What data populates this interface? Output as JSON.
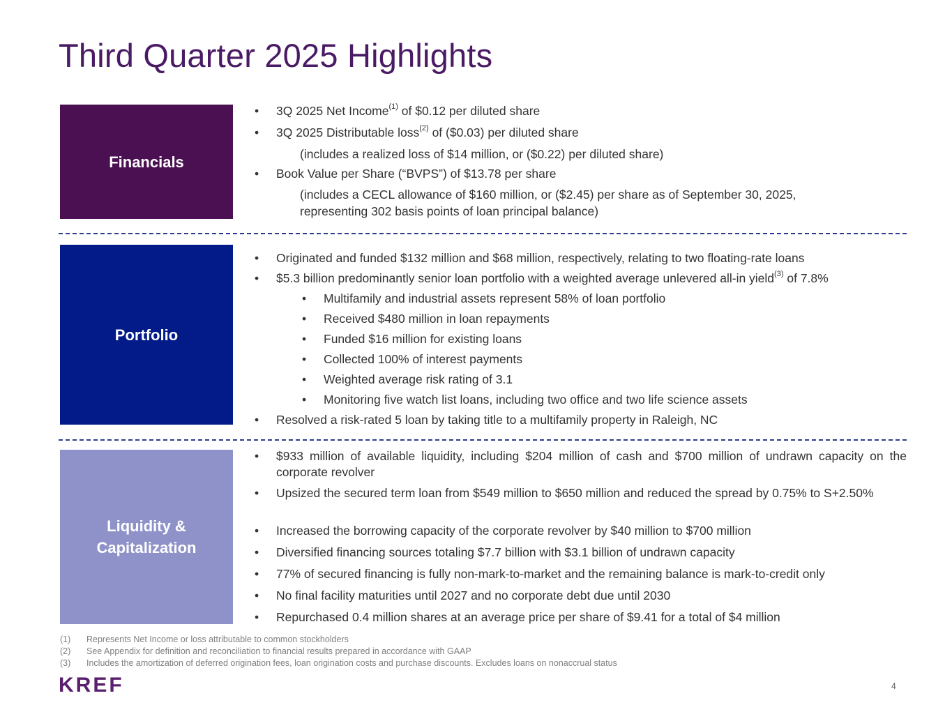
{
  "title": "Third Quarter 2025 Highlights",
  "sections": {
    "financials": {
      "label": "Financials",
      "bullets": [
        {
          "pre": "3Q 2025 Net Income",
          "sup": "(1)",
          "post": " of $0.12 per diluted share"
        },
        {
          "pre": "3Q 2025 Distributable loss",
          "sup": "(2)",
          "post": " of ($0.03) per diluted share"
        },
        {
          "paren": "(includes a realized loss of $14 million, or ($0.22) per diluted share)"
        },
        {
          "text": "Book Value per Share (“BVPS”) of $13.78 per share"
        },
        {
          "paren_l1": "(includes a CECL allowance of $160 million, or ($2.45) per share as of September 30, 2025,",
          "paren_l2": "representing 302 basis points of loan principal balance)"
        }
      ]
    },
    "portfolio": {
      "label": "Portfolio",
      "b1": "Originated and funded $132 million and $68 million, respectively, relating to two floating-rate loans",
      "b2_pre": "$5.3 billion predominantly senior loan portfolio with a weighted average unlevered all-in yield",
      "b2_sup": "(3)",
      "b2_post": " of 7.8%",
      "subs": [
        "Multifamily and industrial assets represent 58% of loan portfolio",
        "Received $480 million in loan repayments",
        "Funded $16 million for existing loans",
        "Collected 100% of interest payments",
        "Weighted average risk rating of 3.1",
        "Monitoring five watch list loans, including two office and two life science assets"
      ],
      "b3": "Resolved a risk-rated 5 loan by taking title to a multifamily property in Raleigh, NC"
    },
    "liquidity": {
      "label_l1": "Liquidity &",
      "label_l2": "Capitalization",
      "bullets": [
        "$933 million of available liquidity, including $204 million of cash and $700 million of undrawn capacity on the corporate revolver",
        "Upsized the secured term loan from $549 million to $650 million and reduced the spread by 0.75% to S+2.50%",
        "Increased the borrowing capacity of the corporate revolver by $40 million to $700 million",
        "Diversified financing sources totaling $7.7 billion with $3.1 billion of undrawn capacity",
        "77% of secured financing is fully non-mark-to-market and the remaining balance is mark-to-credit only",
        "No final facility maturities until 2027 and no corporate debt due until 2030",
        "Repurchased 0.4 million shares at an average price per share of $9.41 for a total of $4 million"
      ]
    }
  },
  "bullet_char": "•",
  "footnotes": [
    {
      "num": "(1)",
      "text": "Represents Net Income or loss attributable to common stockholders"
    },
    {
      "num": "(2)",
      "text": "See Appendix for definition and reconciliation to financial results prepared in accordance with GAAP"
    },
    {
      "num": "(3)",
      "text": "Includes the amortization of deferred origination fees, loan origination costs and purchase discounts. Excludes loans on nonaccrual status"
    }
  ],
  "logo": "KREF",
  "page_number": "4",
  "colors": {
    "title": "#4a1a64",
    "financials": "#4a1051",
    "portfolio": "#021b88",
    "liquidity": "#8f92c9",
    "dash": "#2b3d8f"
  }
}
